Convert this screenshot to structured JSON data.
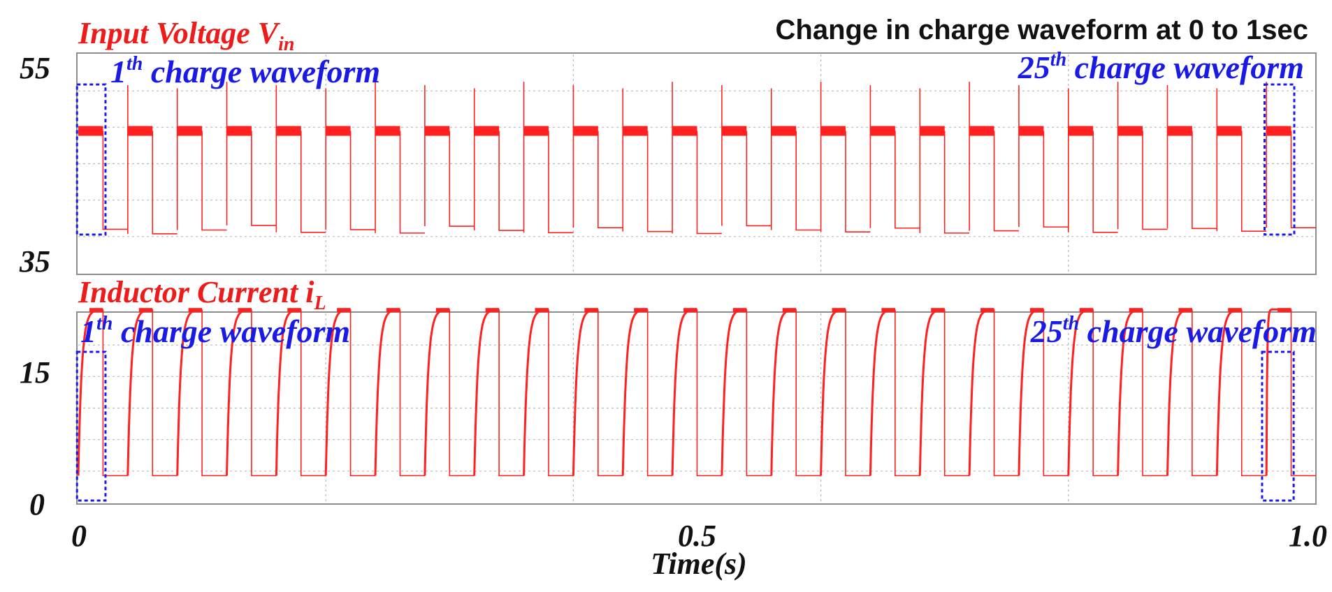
{
  "chart_data": [
    {
      "type": "line",
      "title": "Change in charge waveform at 0 to 1sec",
      "ylabel_main": "Input Voltage V",
      "ylabel_sub": "in",
      "yticks": [
        "55",
        "35"
      ],
      "ylim": [
        35,
        55
      ],
      "xlim": [
        0,
        1.0
      ],
      "grid": true,
      "series": [
        {
          "color": "#ff2020",
          "pulses": 25,
          "period_s": 0.04,
          "on_fraction": 0.5,
          "high_level": 48,
          "low_level": 39,
          "spike_level": 52.5
        }
      ],
      "annotations": [
        {
          "ord": "1",
          "sup": "th",
          "text": " charge waveform"
        },
        {
          "ord": "25",
          "sup": "th",
          "text": " charge waveform"
        }
      ]
    },
    {
      "type": "line",
      "ylabel_main": "Inductor Current i",
      "ylabel_sub": "L",
      "yticks": [
        "15",
        "0"
      ],
      "ylim": [
        0,
        16.5
      ],
      "xlim": [
        0,
        1.0
      ],
      "grid": true,
      "series": [
        {
          "color": "#ff2020",
          "pulses": 25,
          "period_s": 0.04,
          "on_fraction": 0.5,
          "low_level": 1.5,
          "saturation_level": 16
        }
      ],
      "annotations": [
        {
          "ord": "1",
          "sup": "th",
          "text": " charge waveform"
        },
        {
          "ord": "25",
          "sup": "th",
          "text": " charge waveform"
        }
      ]
    }
  ],
  "xaxis": {
    "xlabel": "Time(s)",
    "xticks": [
      "0",
      "0.5",
      "1.0"
    ],
    "xtick_values": [
      0,
      0.5,
      1.0
    ]
  },
  "colors": {
    "signal": "#ff2020",
    "label_red": "#ee1b1b",
    "annotation_blue": "#1a1ae6",
    "grid": "#b8b8b8",
    "frame": "#8c8c8c"
  }
}
